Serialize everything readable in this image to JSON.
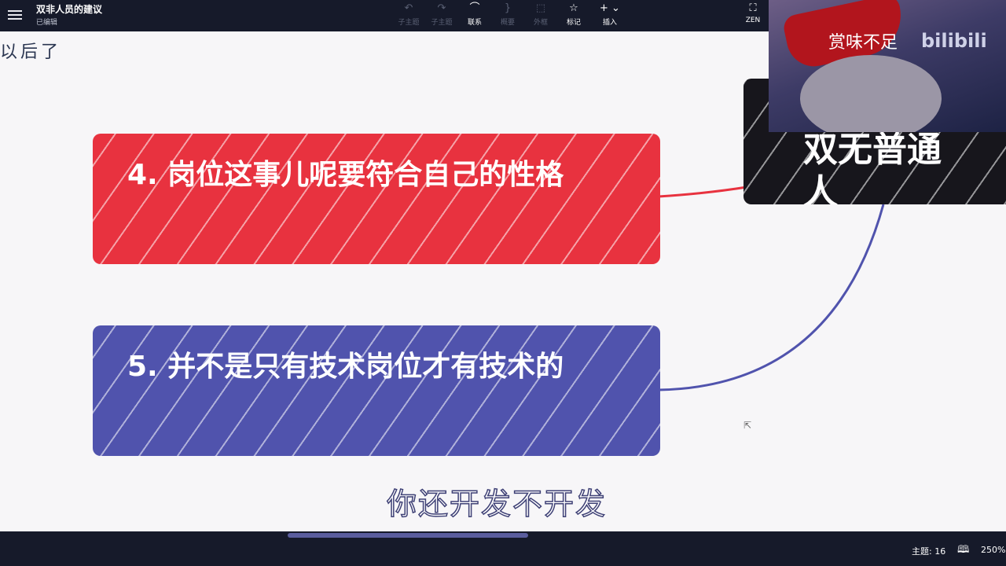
{
  "header": {
    "doc_title": "双非人员的建议",
    "doc_status": "已编辑",
    "tools": [
      {
        "label": "子主题",
        "icon": "↶"
      },
      {
        "label": "子主题",
        "icon": "↷"
      },
      {
        "label": "联系",
        "icon": "⌒"
      },
      {
        "label": "概要",
        "icon": "}"
      },
      {
        "label": "外框",
        "icon": "⬚"
      },
      {
        "label": "标记",
        "icon": "☆"
      },
      {
        "label": "插入",
        "icon": "+ ⌄"
      }
    ],
    "zen_label": "ZEN",
    "zen_icon": "⛶"
  },
  "canvas": {
    "prev_text": "以后了",
    "node4": "4. 岗位这事儿呢要符合自己的性格",
    "node5": "5. 并不是只有技术岗位才有技术的",
    "root_node": "双无普通人",
    "subtitle": "你还开发不开发",
    "colors": {
      "node4": "#e8323f",
      "node5": "#5053ad",
      "root": "#17161c"
    }
  },
  "video_overlay": {
    "caption": "赏味不足",
    "logo": "bilibili"
  },
  "statusbar": {
    "topic_count": "主题: 16",
    "zoom": "250%",
    "map_icon": "map-icon"
  }
}
